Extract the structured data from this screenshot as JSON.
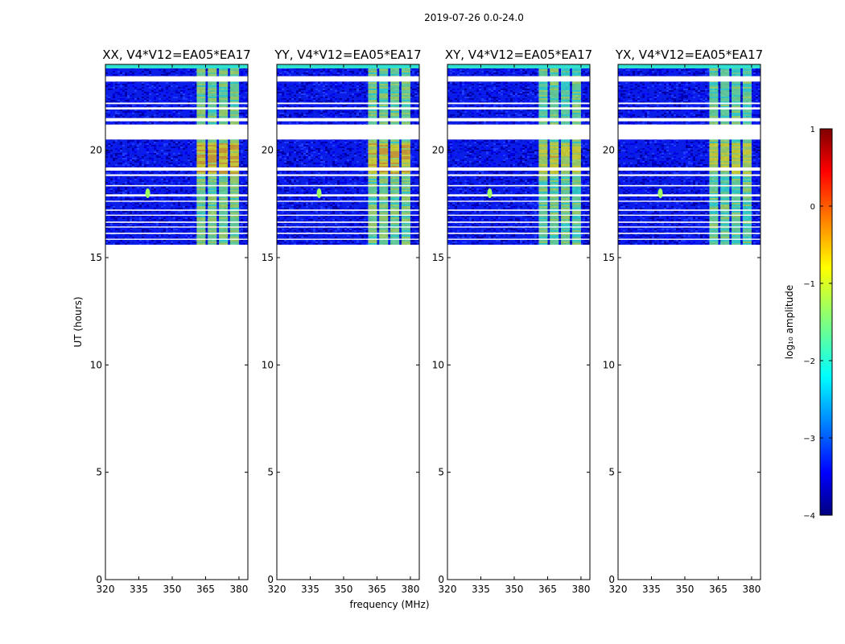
{
  "figure": {
    "suptitle": "2019-07-26 0.0-24.0",
    "ylabel": "UT (hours)",
    "xlabel": "frequency (MHz)"
  },
  "colorbar": {
    "label": "log₁₀ amplitude",
    "range": [
      -4,
      1
    ],
    "ticks": [
      "1",
      "0",
      "−1",
      "−2",
      "−3",
      "−4"
    ],
    "tick_values": [
      1,
      0,
      -1,
      -2,
      -3,
      -4
    ],
    "colormap": [
      "#00007f",
      "#0000ff",
      "#007fff",
      "#00ffff",
      "#7fff7f",
      "#ffff00",
      "#ff7f00",
      "#ff0000",
      "#7f0000"
    ]
  },
  "chart_data": {
    "type": "heatmap",
    "xlim": [
      320,
      384
    ],
    "ylim": [
      0,
      24
    ],
    "data_ut_range": [
      15.6,
      24.0
    ],
    "xticks": [
      320,
      335,
      350,
      365,
      380
    ],
    "xtick_labels": [
      "320",
      "335",
      "350",
      "365",
      "380"
    ],
    "yticks": [
      0,
      5,
      10,
      15,
      20
    ],
    "ytick_labels": [
      "0",
      "5",
      "10",
      "15",
      "20"
    ],
    "flagged_ut_rows": [
      [
        23.2,
        23.45
      ],
      [
        22.15,
        22.22
      ],
      [
        21.9,
        22.0
      ],
      [
        21.35,
        21.5
      ],
      [
        20.5,
        21.2
      ],
      [
        19.05,
        19.2
      ],
      [
        18.8,
        18.88
      ],
      [
        18.32,
        18.38
      ],
      [
        17.85,
        17.95
      ],
      [
        17.6,
        17.65
      ],
      [
        17.18,
        17.24
      ],
      [
        16.95,
        17.0
      ],
      [
        16.62,
        16.68
      ],
      [
        16.4,
        16.45
      ],
      [
        16.1,
        16.16
      ],
      [
        15.83,
        15.88
      ]
    ],
    "bright_bands_mhz": [
      [
        361,
        365
      ],
      [
        366,
        370
      ],
      [
        371,
        375
      ],
      [
        376,
        380
      ]
    ],
    "rfi_feature": {
      "freq_mhz": 339,
      "ut_hours": 18.0
    },
    "panels": [
      {
        "title": "XX, V4*V12=EA05*EA17",
        "bright_level": 1.0
      },
      {
        "title": "YY, V4*V12=EA05*EA17",
        "bright_level": 0.95
      },
      {
        "title": "XY, V4*V12=EA05*EA17",
        "bright_level": 0.8
      },
      {
        "title": "YX, V4*V12=EA05*EA17",
        "bright_level": 0.75
      }
    ]
  }
}
